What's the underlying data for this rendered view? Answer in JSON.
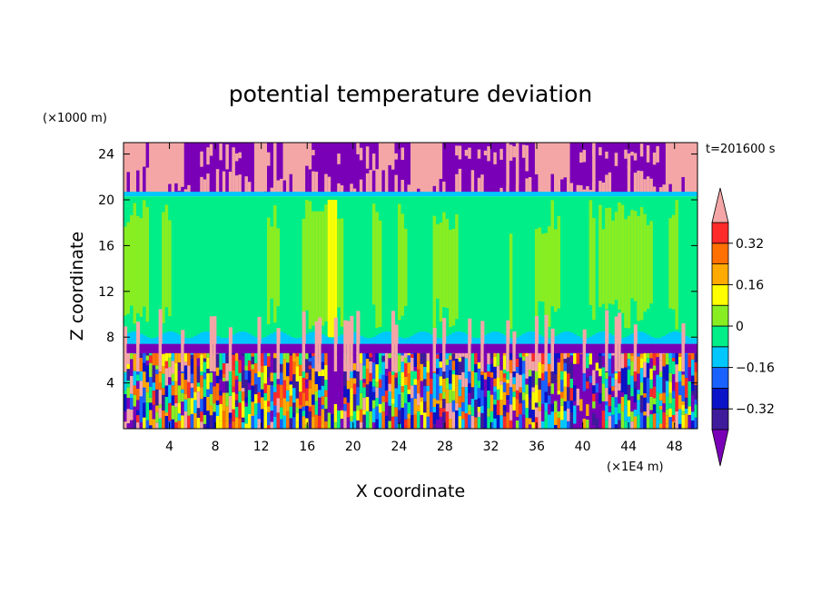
{
  "chart_data": {
    "type": "heatmap",
    "title": "potential temperature deviation",
    "xlabel": "X coordinate",
    "ylabel": "Z coordinate",
    "x_unit": "(×1E4 m)",
    "y_unit": "(×1000 m)",
    "time_label": "t=201600 s",
    "x_ticks": [
      4,
      8,
      12,
      16,
      20,
      24,
      28,
      32,
      36,
      40,
      44,
      48
    ],
    "y_ticks": [
      4,
      8,
      12,
      16,
      20,
      24
    ],
    "xlim": [
      0,
      50
    ],
    "ylim": [
      0,
      25
    ],
    "colorbar": {
      "levels": [
        -0.4,
        -0.32,
        -0.24,
        -0.16,
        -0.08,
        0,
        0.08,
        0.16,
        0.24,
        0.32,
        0.4
      ],
      "tick_labels": [
        "0.32",
        "0.16",
        "0",
        "−0.16",
        "−0.32"
      ],
      "tick_values": [
        0.32,
        0.16,
        0,
        -0.16,
        -0.32
      ],
      "colors": [
        "#7a00b8",
        "#3e1b9a",
        "#0a13c8",
        "#1a62ff",
        "#00c8ff",
        "#00ee88",
        "#88ee22",
        "#ffff00",
        "#ffaa00",
        "#ff7000",
        "#ff2a2a",
        "#f4a6a6"
      ]
    },
    "layers": [
      {
        "z_range": [
          20.5,
          25
        ],
        "description_value": "mostly below -0.4 and above 0.4 (purple / pink)"
      },
      {
        "z_range": [
          7.5,
          20.5
        ],
        "description_value": "mostly 0 to 0.08 with bands 0.08 to 0.16"
      },
      {
        "z_range": [
          0,
          7.5
        ],
        "description_value": "mixed -0.4 to 0.4"
      }
    ]
  }
}
